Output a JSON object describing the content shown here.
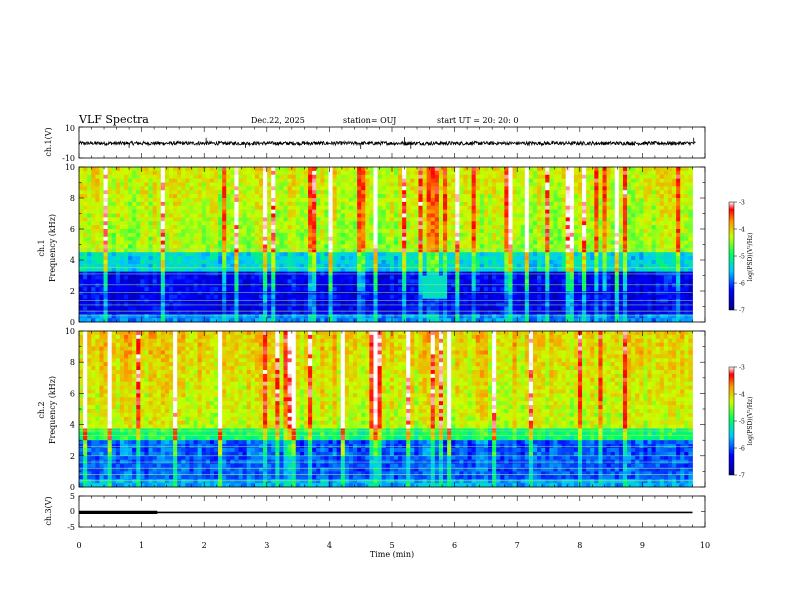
{
  "header": {
    "title": "VLF Spectra",
    "date": "Dec.22, 2025",
    "station": "station= OUJ",
    "start": "start  UT =   20: 20: 0"
  },
  "chart_data": [
    {
      "type": "line",
      "panel": "ch1-waveform",
      "ylabel": "ch.1(V)",
      "ylim": [
        -10,
        10
      ],
      "ytick_labels": [
        "10",
        "-10"
      ],
      "xlim": [
        0,
        10
      ],
      "baseline": -0.5,
      "noise_amplitude": 1.2,
      "spike_times": [
        0.8,
        2.03,
        2.66,
        4.5,
        5.3,
        5.2,
        9.82
      ],
      "spike_values": [
        -3.5,
        3.0,
        -3.5,
        -4.2,
        -4.0,
        3.5,
        3.0
      ]
    },
    {
      "type": "heatmap",
      "panel": "ch1-spectrogram",
      "ylabel": "ch.1\nFrequency (kHz)",
      "ylim": [
        0,
        10
      ],
      "yticks": [
        0,
        2,
        4,
        6,
        8,
        10
      ],
      "ytick_labels": [
        "0",
        "2",
        "4",
        "6",
        "8",
        "10"
      ],
      "xlim": [
        0,
        10
      ],
      "data_end_min": 9.8,
      "colorbar": {
        "range": [
          -7,
          -3
        ],
        "tick_labels": [
          "-3",
          "-4",
          "-5",
          "-6",
          "-7"
        ],
        "label": "log(PSD)(V²/Hz)"
      }
    },
    {
      "type": "heatmap",
      "panel": "ch2-spectrogram",
      "ylabel": "ch.2\nFrequency (kHz)",
      "ylim": [
        0,
        10
      ],
      "yticks": [
        0,
        2,
        4,
        6,
        8,
        10
      ],
      "ytick_labels": [
        "0",
        "2",
        "4",
        "6",
        "8",
        "10"
      ],
      "xlim": [
        0,
        10
      ],
      "data_end_min": 9.8,
      "colorbar": {
        "range": [
          -7,
          -3
        ],
        "tick_labels": [
          "-3",
          "-4",
          "-5",
          "-6",
          "-7"
        ],
        "label": "log(PSD)(V²/Hz)"
      }
    },
    {
      "type": "line",
      "panel": "ch3-waveform",
      "ylabel": "ch.3(V)",
      "ylim": [
        -5,
        5
      ],
      "ytick_labels": [
        "5",
        "0",
        "-5"
      ],
      "xlim": [
        0,
        10
      ],
      "xticks": [
        0,
        1,
        2,
        3,
        4,
        5,
        6,
        7,
        8,
        9,
        10
      ],
      "xtick_labels": [
        "0",
        "1",
        "2",
        "3",
        "4",
        "5",
        "6",
        "7",
        "8",
        "9",
        "10"
      ],
      "xlabel": "Time (min)",
      "level": -0.3,
      "thick_segment_end": 1.25,
      "data_end_min": 9.8
    }
  ]
}
